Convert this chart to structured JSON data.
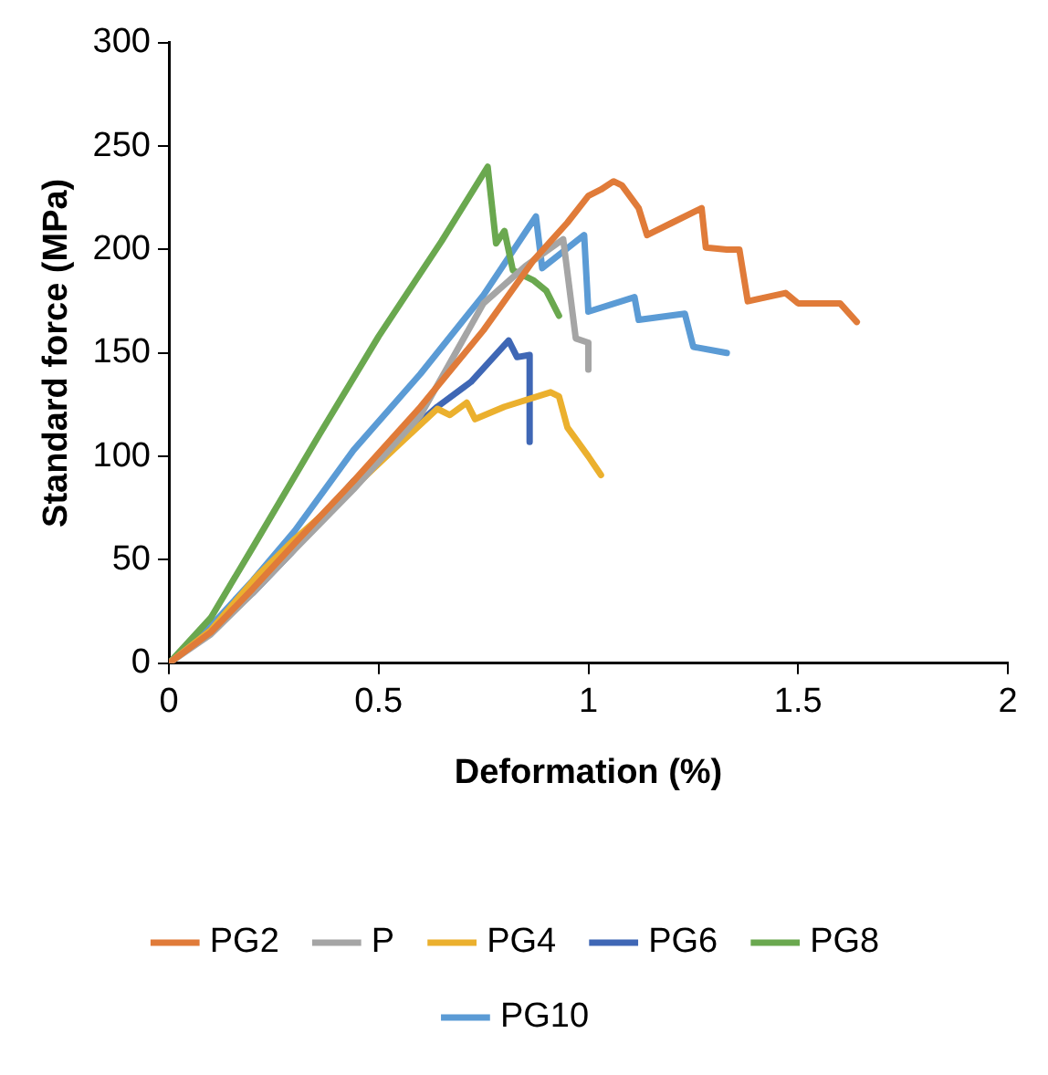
{
  "chart_data": {
    "type": "line",
    "xlabel": "Deformation (%)",
    "ylabel": "Standard force (MPa)",
    "xlim": [
      0,
      2
    ],
    "xticks": [
      0,
      0.5,
      1,
      1.5,
      2
    ],
    "ylim": [
      0,
      300
    ],
    "yticks": [
      0,
      50,
      100,
      150,
      200,
      250,
      300
    ],
    "grid": false,
    "legend": "bottom",
    "marker": "none",
    "line_style": "solid",
    "series": [
      {
        "name": "PG2",
        "color": "#e07b39",
        "x": [
          0,
          0.1,
          0.2,
          0.3,
          0.44,
          0.6,
          0.75,
          0.87,
          0.95,
          1.0,
          1.03,
          1.06,
          1.08,
          1.12,
          1.14,
          1.2,
          1.27,
          1.28,
          1.33,
          1.36,
          1.38,
          1.47,
          1.5,
          1.6,
          1.64
        ],
        "values": [
          0,
          15,
          36,
          58,
          88,
          124,
          161,
          195,
          213,
          226,
          229,
          233,
          231,
          220,
          207,
          213,
          220,
          201,
          200,
          200,
          175,
          179,
          174,
          174,
          165
        ]
      },
      {
        "name": "P",
        "color": "#a5a5a5",
        "x": [
          0,
          0.1,
          0.2,
          0.3,
          0.44,
          0.6,
          0.75,
          0.85,
          0.94,
          0.97,
          1.0,
          1.0
        ],
        "values": [
          0,
          14,
          34,
          55,
          84,
          120,
          174,
          192,
          205,
          157,
          155,
          142
        ]
      },
      {
        "name": "PG4",
        "color": "#ebb02e",
        "x": [
          0,
          0.1,
          0.21,
          0.3,
          0.44,
          0.55,
          0.64,
          0.67,
          0.71,
          0.73,
          0.8,
          0.91,
          0.93,
          0.95,
          1.0,
          1.03
        ],
        "values": [
          0,
          16,
          42,
          60,
          85,
          106,
          123,
          120,
          126,
          118,
          124,
          131,
          129,
          114,
          100,
          91
        ]
      },
      {
        "name": "PG6",
        "color": "#3f67b5",
        "x": [
          0,
          0.1,
          0.2,
          0.29,
          0.44,
          0.55,
          0.64,
          0.72,
          0.81,
          0.83,
          0.86,
          0.86
        ],
        "values": [
          0,
          16,
          34,
          53,
          88,
          108,
          124,
          136,
          156,
          148,
          149,
          107
        ]
      },
      {
        "name": "PG8",
        "color": "#6aa84f",
        "x": [
          0,
          0.1,
          0.2,
          0.36,
          0.5,
          0.65,
          0.76,
          0.78,
          0.8,
          0.82,
          0.87,
          0.9,
          0.93
        ],
        "values": [
          0,
          22,
          56,
          111,
          158,
          204,
          240,
          203,
          209,
          190,
          185,
          180,
          168
        ]
      },
      {
        "name": "PG10",
        "color": "#5b9bd5",
        "x": [
          0,
          0.1,
          0.2,
          0.3,
          0.44,
          0.6,
          0.75,
          0.875,
          0.89,
          0.99,
          1.0,
          1.11,
          1.12,
          1.23,
          1.25,
          1.33
        ],
        "values": [
          0,
          18,
          40,
          64,
          103,
          140,
          178,
          216,
          191,
          207,
          170,
          177,
          166,
          169,
          153,
          150
        ]
      }
    ]
  }
}
